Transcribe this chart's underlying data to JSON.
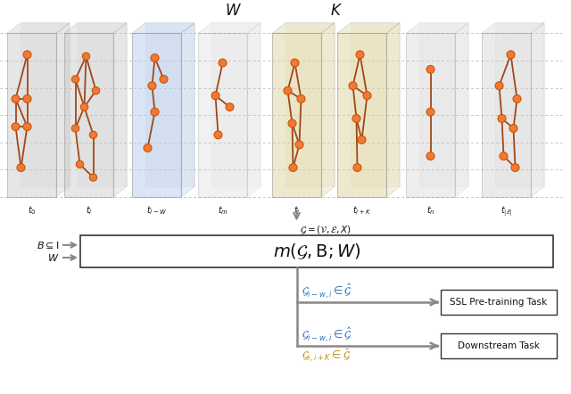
{
  "bg_color": "#ffffff",
  "node_color": "#f07838",
  "node_edge_color": "#cc5500",
  "edge_color": "#a04818",
  "panel_gray_color": "#c8c8c8",
  "panel_gray_alpha": 0.45,
  "panel_blue_color": "#b8cce8",
  "panel_blue_alpha": 0.5,
  "panel_yellow_color": "#ddd4a0",
  "panel_yellow_alpha": 0.5,
  "arrow_color": "#888888",
  "blue_text": "#3070b8",
  "gold_text": "#c09010",
  "dark_text": "#111111",
  "dashed_line_color": "#aaaaaa",
  "W_label": "$\\mathbf{\\mathit{W}}$",
  "K_label": "$\\mathbf{\\mathit{K}}$",
  "time_labels": [
    "$t_0$",
    "$t_l$",
    "$t_{l-W}$",
    "$t_m$",
    "$t_i$",
    "$t_{i+K}$",
    "$t_n$",
    "$t_{|\\mathcal{E}|}$"
  ],
  "model_text": "$m(\\mathcal{G}, \\mathrm{B}; W)$",
  "graph_label": "$\\mathcal{G} = (\\mathcal{V}, \\mathcal{E}, X)$",
  "input_label1": "$B \\subseteq \\mathrm{I}$",
  "input_label2": "$W$",
  "ssl_blue_label": "$\\mathcal{G}_{i-w,i} \\in \\hat{\\mathcal{G}}$",
  "ssl_gold_label": "$\\mathcal{G}_{i,i+K} \\in \\bar{\\mathcal{G}}$",
  "ssl_task": "SSL Pre-training Task",
  "downstream_task": "Downstream Task"
}
